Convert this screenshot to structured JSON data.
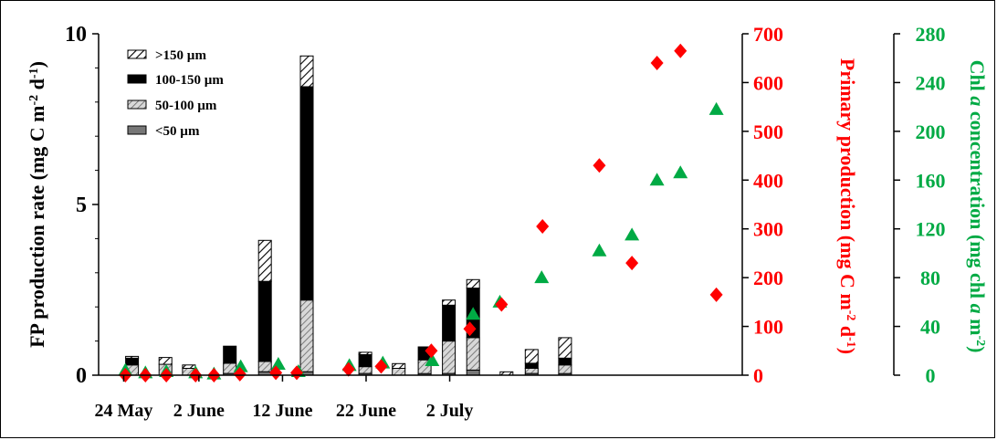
{
  "chart_data": {
    "type": "bar",
    "x_tick_labels": [
      "24 May",
      "2 June",
      "12 June",
      "22 June",
      "2 July"
    ],
    "x_tick_days": [
      0,
      9,
      19,
      29,
      39
    ],
    "left_axis": {
      "label_parts": [
        "FP production rate (mg C m",
        "-2",
        " d",
        "-1",
        ")"
      ],
      "ylim": [
        0,
        10
      ],
      "ticks": [
        0,
        5,
        10
      ],
      "tick_labels": [
        "0",
        "5",
        "10"
      ]
    },
    "right_axis_1": {
      "label_parts": [
        "Primary production (mg C m",
        "-2",
        " d",
        "-1",
        ")"
      ],
      "ylim": [
        0,
        700
      ],
      "ticks": [
        0,
        100,
        200,
        300,
        400,
        500,
        600,
        700
      ],
      "tick_labels": [
        "0",
        "100",
        "200",
        "300",
        "400",
        "500",
        "600",
        "700"
      ],
      "color": "#ff0000"
    },
    "right_axis_2": {
      "label_parts": [
        "Chl ",
        "a",
        " concentration (mg chl ",
        "a",
        " m",
        "-2",
        ")"
      ],
      "ylim": [
        0,
        280
      ],
      "ticks": [
        0,
        40,
        80,
        120,
        160,
        200,
        240,
        280
      ],
      "tick_labels": [
        "0",
        "40",
        "80",
        "120",
        "160",
        "200",
        "240",
        "280"
      ],
      "color": "#00aa44"
    },
    "bar_series": [
      {
        "name": "<50 µm",
        "color": "#777777",
        "pattern": "solid-grey"
      },
      {
        "name": "50-100 µm",
        "color": "#aaaaaa",
        "pattern": "hatch-grey"
      },
      {
        "name": "100-150 µm",
        "color": "#000000",
        "pattern": "solid-black"
      },
      {
        "name": ">150 µm",
        "color": "#ffffff",
        "pattern": "hatch-bw"
      }
    ],
    "bars": [
      {
        "day": 1,
        "values": [
          0.0,
          0.3,
          0.2,
          0.05
        ]
      },
      {
        "day": 5,
        "values": [
          0.0,
          0.32,
          0.0,
          0.2
        ]
      },
      {
        "day": 7.8,
        "values": [
          0.0,
          0.2,
          0.0,
          0.1
        ]
      },
      {
        "day": 12.7,
        "values": [
          0.05,
          0.3,
          0.5,
          0.0
        ]
      },
      {
        "day": 16.9,
        "values": [
          0.1,
          0.3,
          2.35,
          1.2
        ]
      },
      {
        "day": 21.9,
        "values": [
          0.1,
          2.1,
          6.25,
          0.9
        ]
      },
      {
        "day": 28.9,
        "values": [
          0.05,
          0.2,
          0.35,
          0.07
        ]
      },
      {
        "day": 32.9,
        "values": [
          0.0,
          0.2,
          0.0,
          0.14
        ]
      },
      {
        "day": 36,
        "values": [
          0.05,
          0.4,
          0.38,
          0.0
        ]
      },
      {
        "day": 38.9,
        "values": [
          0.05,
          0.95,
          1.05,
          0.15
        ]
      },
      {
        "day": 41.8,
        "values": [
          0.15,
          0.95,
          1.45,
          0.25
        ]
      },
      {
        "day": 45.8,
        "values": [
          0.0,
          0.0,
          0.0,
          0.1
        ]
      },
      {
        "day": 48.8,
        "values": [
          0.05,
          0.15,
          0.15,
          0.4
        ]
      },
      {
        "day": 52.8,
        "values": [
          0.05,
          0.25,
          0.2,
          0.6
        ]
      }
    ],
    "primary_production": [
      {
        "day": 0.2,
        "value": 0
      },
      {
        "day": 2.6,
        "value": 0
      },
      {
        "day": 5.1,
        "value": 0
      },
      {
        "day": 8.6,
        "value": 0
      },
      {
        "day": 10.8,
        "value": 0
      },
      {
        "day": 13.9,
        "value": 2
      },
      {
        "day": 18.2,
        "value": 5
      },
      {
        "day": 20.7,
        "value": 5
      },
      {
        "day": 26.9,
        "value": 12
      },
      {
        "day": 30.8,
        "value": 18
      },
      {
        "day": 36.8,
        "value": 50
      },
      {
        "day": 41.4,
        "value": 95
      },
      {
        "day": 45.2,
        "value": 145
      },
      {
        "day": 50.1,
        "value": 305
      },
      {
        "day": 56.9,
        "value": 430
      },
      {
        "day": 60.8,
        "value": 230
      },
      {
        "day": 63.8,
        "value": 640
      },
      {
        "day": 66.6,
        "value": 665
      },
      {
        "day": 70.9,
        "value": 165
      }
    ],
    "chl_a": [
      {
        "day": 0.2,
        "value": 4
      },
      {
        "day": 2.6,
        "value": 2
      },
      {
        "day": 5.1,
        "value": 3
      },
      {
        "day": 8.6,
        "value": 2
      },
      {
        "day": 10.8,
        "value": 1
      },
      {
        "day": 14.0,
        "value": 7
      },
      {
        "day": 18.5,
        "value": 9
      },
      {
        "day": 20.9,
        "value": 3
      },
      {
        "day": 27.0,
        "value": 8
      },
      {
        "day": 31.0,
        "value": 10
      },
      {
        "day": 36.9,
        "value": 12
      },
      {
        "day": 41.8,
        "value": 50
      },
      {
        "day": 45.0,
        "value": 60
      },
      {
        "day": 50.0,
        "value": 80
      },
      {
        "day": 56.9,
        "value": 102
      },
      {
        "day": 60.8,
        "value": 115
      },
      {
        "day": 63.8,
        "value": 160
      },
      {
        "day": 66.6,
        "value": 166
      },
      {
        "day": 70.9,
        "value": 218
      }
    ]
  }
}
